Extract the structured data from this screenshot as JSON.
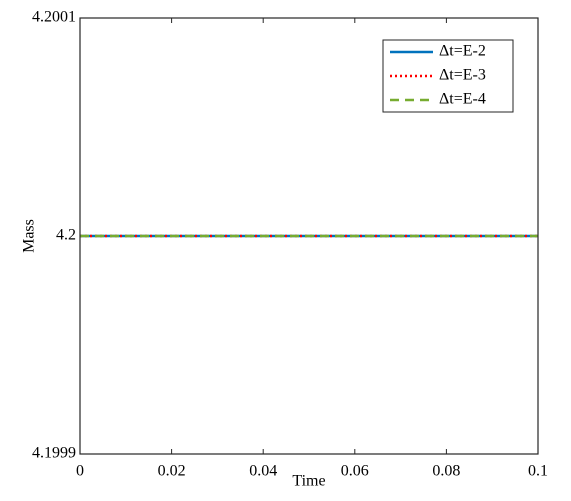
{
  "chart_data": {
    "type": "line",
    "x_label": "Time",
    "y_label": "Mass",
    "x": [
      0,
      0.1
    ],
    "series": [
      {
        "name": "Δt=E-2",
        "color": "#0072bd",
        "style": "solid",
        "values": [
          4.2,
          4.2
        ]
      },
      {
        "name": "Δt=E-3",
        "color": "#ff0000",
        "style": "dotted",
        "values": [
          4.2,
          4.2
        ]
      },
      {
        "name": "Δt=E-4",
        "color": "#77ac30",
        "style": "dashed",
        "values": [
          4.2,
          4.2
        ]
      }
    ],
    "xlim": [
      0,
      0.1
    ],
    "xticks": [
      0,
      0.02,
      0.04,
      0.06,
      0.08,
      0.1
    ],
    "ylim": [
      4.1999,
      4.2001
    ],
    "yticks": [
      4.1999,
      4.2,
      4.2001
    ],
    "legend": "upper right",
    "grid": false
  }
}
